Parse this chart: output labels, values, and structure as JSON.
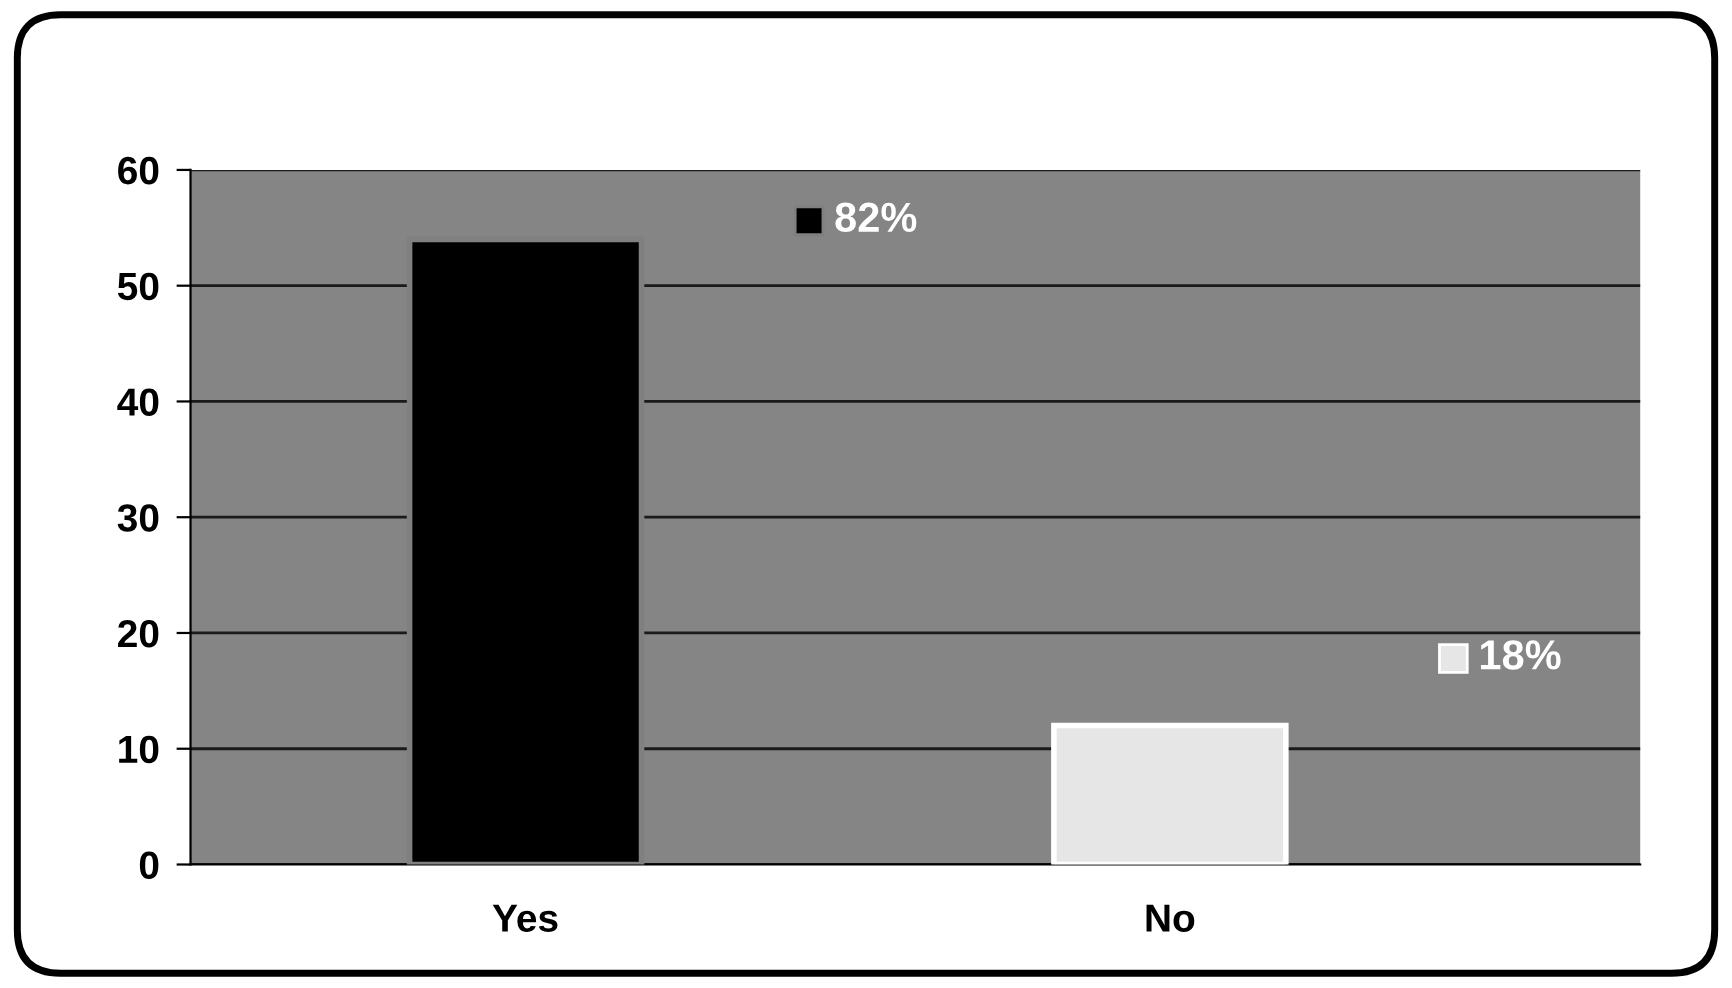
{
  "chart_data": {
    "type": "bar",
    "categories": [
      "Yes",
      "No"
    ],
    "values": [
      54,
      12
    ],
    "colors": [
      "#000000",
      "#e6e6e6"
    ],
    "annotations": [
      "82%",
      "18%"
    ],
    "ylim": [
      0,
      60
    ],
    "yticks": [
      0,
      10,
      20,
      30,
      40,
      50,
      60
    ],
    "grid": "y"
  }
}
